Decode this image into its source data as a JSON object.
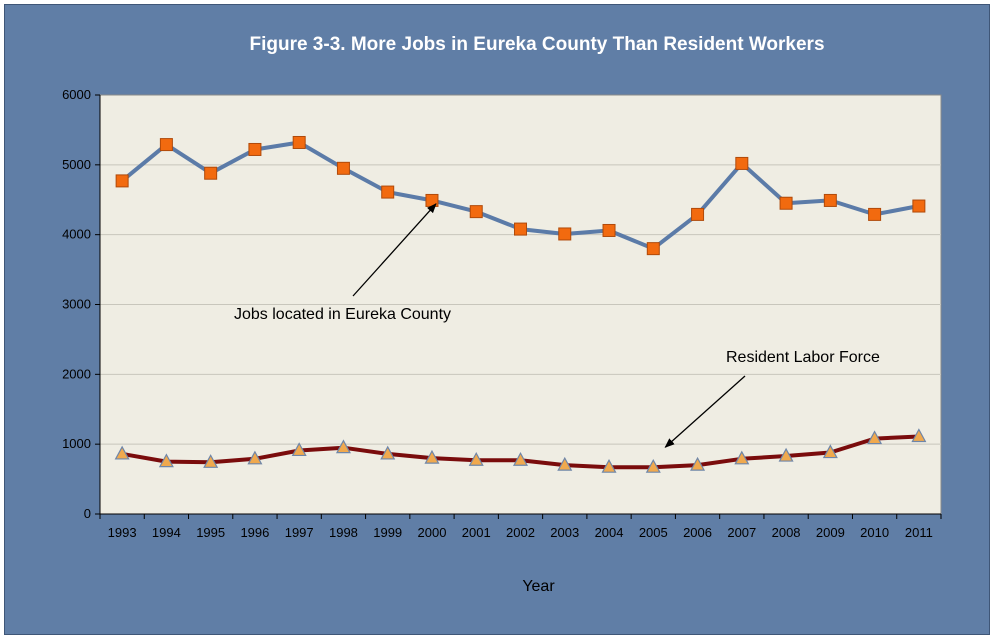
{
  "chart_data": {
    "type": "line",
    "title": "Figure 3-3. More Jobs in Eureka County Than Resident Workers",
    "xlabel": "Year",
    "ylabel": "",
    "ylim": [
      0,
      6000
    ],
    "yticks": [
      0,
      1000,
      2000,
      3000,
      4000,
      5000,
      6000
    ],
    "grid": true,
    "categories": [
      "1993",
      "1994",
      "1995",
      "1996",
      "1997",
      "1998",
      "1999",
      "2000",
      "2001",
      "2002",
      "2003",
      "2004",
      "2005",
      "2006",
      "2007",
      "2008",
      "2009",
      "2010",
      "2011"
    ],
    "series": [
      {
        "name": "Jobs located in Eureka County",
        "line_color": "#5b7ba8",
        "marker": "square",
        "marker_color": "#f26a0f",
        "values": [
          4770,
          5290,
          4880,
          5220,
          5320,
          4950,
          4610,
          4490,
          4330,
          4080,
          4010,
          4060,
          3800,
          4290,
          5020,
          4450,
          4490,
          4290,
          4410
        ]
      },
      {
        "name": "Resident Labor Force",
        "line_color": "#7a0c0c",
        "marker": "triangle",
        "marker_color": "#f0a94e",
        "values": [
          860,
          750,
          740,
          790,
          910,
          950,
          860,
          800,
          770,
          770,
          700,
          670,
          670,
          700,
          790,
          830,
          880,
          1080,
          1110
        ]
      }
    ],
    "annotations": [
      {
        "text": "Jobs located in Eureka County",
        "points_to": {
          "category": "2000",
          "value": 4470
        }
      },
      {
        "text": "Resident Labor Force",
        "points_to": {
          "category": "2005",
          "value": 970
        }
      }
    ],
    "colors": {
      "frame": "#607ea6",
      "plot_background": "#efede3",
      "gridline": "#c8c6bc",
      "title_text": "#ffffff"
    }
  }
}
